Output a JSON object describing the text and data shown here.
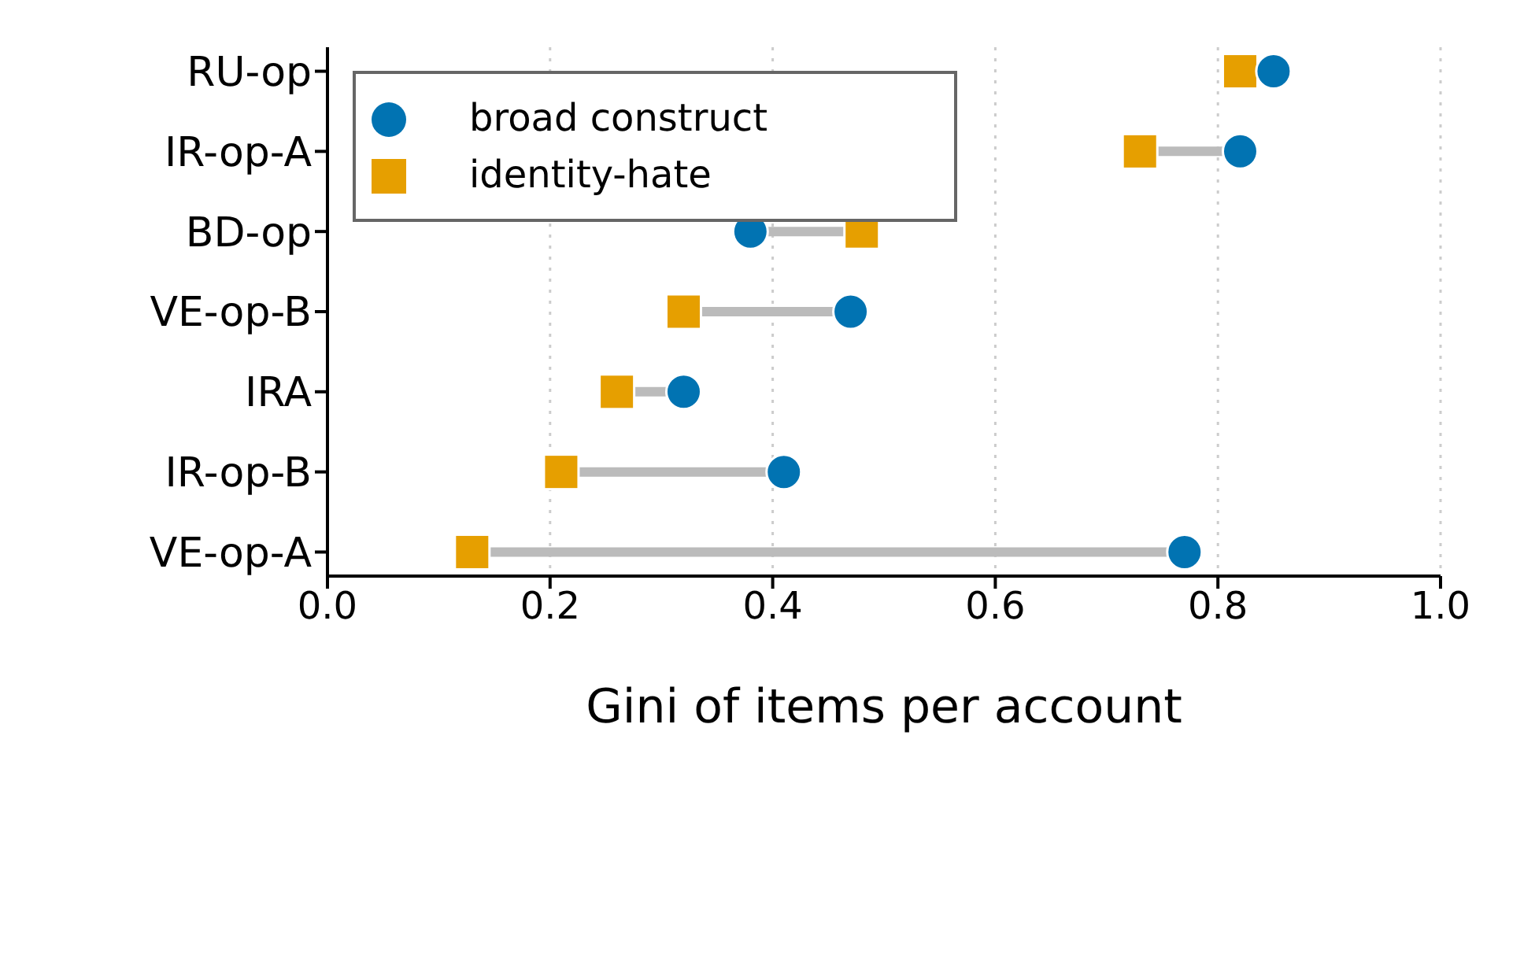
{
  "chart_data": {
    "type": "scatter",
    "orientation": "horizontal",
    "xlabel": "Gini of items per account",
    "categories": [
      "RU-op",
      "IR-op-A",
      "BD-op",
      "VE-op-B",
      "IRA",
      "IR-op-B",
      "VE-op-A"
    ],
    "series": [
      {
        "name": "broad construct",
        "color": "#0173b2",
        "marker": "circle",
        "values": [
          0.85,
          0.82,
          0.38,
          0.47,
          0.32,
          0.41,
          0.77
        ]
      },
      {
        "name": "identity-hate",
        "color": "#e69f00",
        "marker": "square",
        "values": [
          0.82,
          0.73,
          0.48,
          0.32,
          0.26,
          0.21,
          0.13
        ]
      }
    ],
    "xlim": [
      0,
      1
    ],
    "xticks": [
      {
        "value": 0,
        "label": "0.0"
      },
      0.2,
      0.4,
      0.6,
      0.8,
      {
        "value": 1,
        "label": "1.0"
      }
    ],
    "grid": "x",
    "legend": "top left"
  }
}
